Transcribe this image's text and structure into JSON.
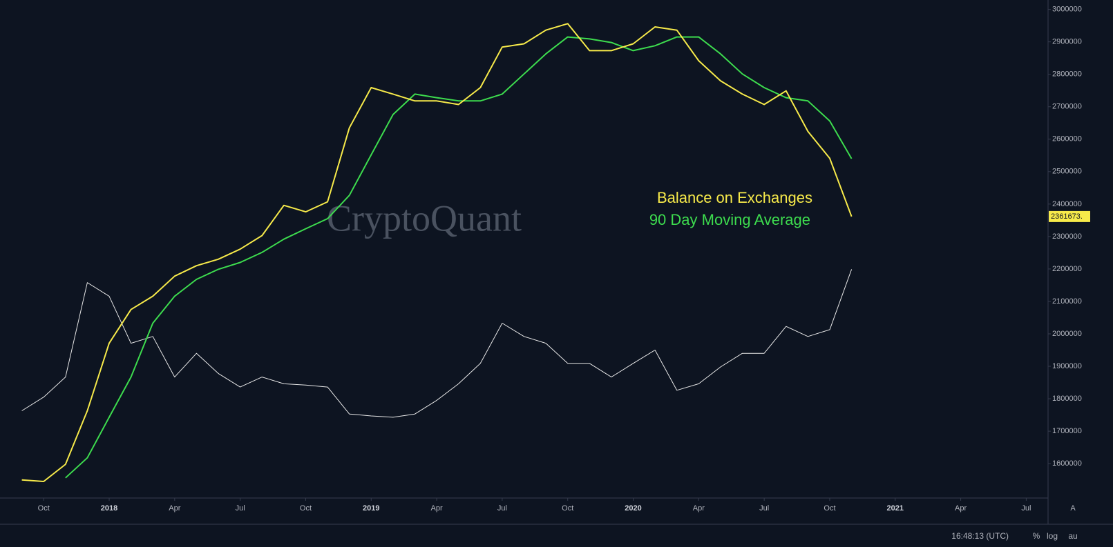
{
  "chart_data": {
    "type": "line",
    "watermark": "CryptoQuant",
    "x": [
      "2017-09",
      "2017-10",
      "2017-11",
      "2017-12",
      "2018-01",
      "2018-02",
      "2018-03",
      "2018-04",
      "2018-05",
      "2018-06",
      "2018-07",
      "2018-08",
      "2018-09",
      "2018-10",
      "2018-11",
      "2018-12",
      "2019-01",
      "2019-02",
      "2019-03",
      "2019-04",
      "2019-05",
      "2019-06",
      "2019-07",
      "2019-08",
      "2019-09",
      "2019-10",
      "2019-11",
      "2019-12",
      "2020-01",
      "2020-02",
      "2020-03",
      "2020-04",
      "2020-05",
      "2020-06",
      "2020-07",
      "2020-08",
      "2020-09",
      "2020-10",
      "2020-11"
    ],
    "series": [
      {
        "name": "Balance on Exchanges",
        "color": "#f7ea4a",
        "last_label": "2361673.",
        "values": [
          1550000,
          1545000,
          1598000,
          1763000,
          1971000,
          2075000,
          2116000,
          2178000,
          2210000,
          2230000,
          2261000,
          2303000,
          2396000,
          2376000,
          2407000,
          2635000,
          2759000,
          2739000,
          2718000,
          2718000,
          2707000,
          2759000,
          2884000,
          2894000,
          2936000,
          2956000,
          2873000,
          2873000,
          2894000,
          2946000,
          2936000,
          2842000,
          2780000,
          2739000,
          2707000,
          2749000,
          2624000,
          2541000,
          2361673
        ]
      },
      {
        "name": "90 Day Moving Average",
        "color": "#3ddc4e",
        "values": [
          null,
          null,
          1556000,
          1618000,
          1743000,
          1867000,
          2033000,
          2116000,
          2168000,
          2199000,
          2220000,
          2251000,
          2292000,
          2324000,
          2355000,
          2427000,
          2552000,
          2676000,
          2739000,
          2728000,
          2718000,
          2718000,
          2739000,
          2801000,
          2863000,
          2915000,
          2909000,
          2898000,
          2873000,
          2888000,
          2915000,
          2915000,
          2863000,
          2801000,
          2759000,
          2728000,
          2718000,
          2656000,
          2540000
        ]
      },
      {
        "color": "#e8e8e8",
        "values": [
          1763000,
          1805000,
          1867000,
          2158000,
          2116000,
          1971000,
          1992000,
          1867000,
          1940000,
          1878000,
          1836000,
          1867000,
          1846000,
          1842000,
          1836000,
          1753000,
          1747000,
          1743000,
          1753000,
          1795000,
          1846000,
          1909000,
          2033000,
          1992000,
          1971000,
          1909000,
          1909000,
          1867000,
          1909000,
          1950000,
          1826000,
          1846000,
          1898000,
          1940000,
          1940000,
          2023000,
          1992000,
          2013000,
          2199000
        ]
      }
    ],
    "xlim": [
      "2017-08",
      "2021-08"
    ],
    "xticks": [
      {
        "value": "2017-10",
        "label": "Oct"
      },
      {
        "value": "2018-01",
        "label": "2018"
      },
      {
        "value": "2018-04",
        "label": "Apr"
      },
      {
        "value": "2018-07",
        "label": "Jul"
      },
      {
        "value": "2018-10",
        "label": "Oct"
      },
      {
        "value": "2019-01",
        "label": "2019"
      },
      {
        "value": "2019-04",
        "label": "Apr"
      },
      {
        "value": "2019-07",
        "label": "Jul"
      },
      {
        "value": "2019-10",
        "label": "Oct"
      },
      {
        "value": "2020-01",
        "label": "2020"
      },
      {
        "value": "2020-04",
        "label": "Apr"
      },
      {
        "value": "2020-07",
        "label": "Jul"
      },
      {
        "value": "2020-10",
        "label": "Oct"
      },
      {
        "value": "2021-01",
        "label": "2021"
      },
      {
        "value": "2021-04",
        "label": "Apr"
      },
      {
        "value": "2021-07",
        "label": "Jul"
      }
    ],
    "ylim": [
      1494000,
      3029000
    ],
    "yticks": [
      1600000,
      1700000,
      1800000,
      1900000,
      2000000,
      2100000,
      2200000,
      2300000,
      2400000,
      2500000,
      2600000,
      2700000,
      2800000,
      2900000,
      3000000
    ],
    "grid": false
  },
  "status_bar": {
    "time": "16:48:13 (UTC)",
    "buttons": [
      "%",
      "log",
      "au"
    ],
    "auto": "A"
  }
}
